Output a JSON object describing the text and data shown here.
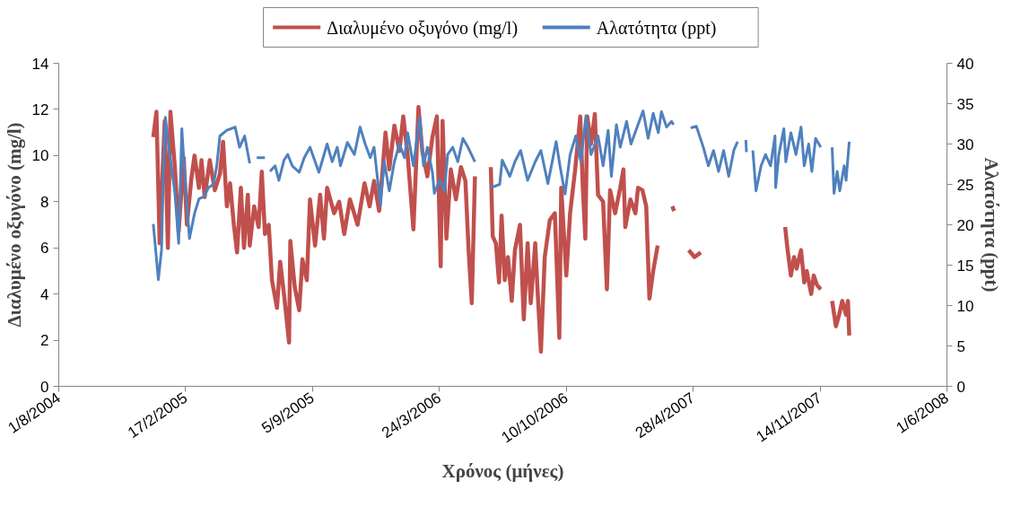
{
  "chart_data": {
    "type": "line",
    "xlabel": "Χρόνος (μήνες)",
    "ylabel": "Διαλυμένο οξυγόνο (mg/l)",
    "y2label": "Αλατότητα (ppt)",
    "xlim": [
      "2004-08-01",
      "2008-06-01"
    ],
    "xticks": [
      {
        "value": "2004-08-01",
        "label": "1/8/2004"
      },
      {
        "value": "2005-02-17",
        "label": "17/2/2005"
      },
      {
        "value": "2005-09-05",
        "label": "5/9/2005"
      },
      {
        "value": "2006-03-24",
        "label": "24/3/2006"
      },
      {
        "value": "2006-10-10",
        "label": "10/10/2006"
      },
      {
        "value": "2007-04-28",
        "label": "28/4/2007"
      },
      {
        "value": "2007-11-14",
        "label": "14/11/2007"
      },
      {
        "value": "2008-06-01",
        "label": "1/6/2008"
      }
    ],
    "ylim": [
      0,
      14
    ],
    "yticks": [
      0,
      2,
      4,
      6,
      8,
      10,
      12,
      14
    ],
    "y2lim": [
      0,
      40
    ],
    "y2ticks": [
      0,
      5,
      10,
      15,
      20,
      25,
      30,
      35,
      40
    ],
    "grid": false,
    "legend": "top",
    "marker": "none",
    "line_style": "solid",
    "series": [
      {
        "name": "Διαλυμένο οξυγόνο (mg/l)",
        "color": "#c0504d",
        "axis": "y",
        "x": [
          "2004-12-28",
          "2005-01-02",
          "2005-01-07",
          "2005-01-15",
          "2005-01-20",
          "2005-01-24",
          "2005-01-31",
          "2005-02-06",
          "2005-02-14",
          "2005-02-19",
          "2005-02-26",
          "2005-03-03",
          "2005-03-10",
          "2005-03-14",
          "2005-03-19",
          "2005-03-27",
          "2005-04-04",
          "2005-04-12",
          "2005-04-17",
          "2005-04-23",
          "2005-04-28",
          "2005-05-04",
          "2005-05-09",
          "2005-05-15",
          "2005-05-20",
          "2005-05-26",
          "2005-05-29",
          "2005-06-05",
          "2005-06-12",
          "2005-06-17",
          "2005-06-22",
          "2005-06-28",
          "2005-07-03",
          "2005-07-11",
          "2005-07-16",
          "2005-07-22",
          "2005-07-30",
          "2005-08-01",
          "2005-08-08",
          "2005-08-15",
          "2005-08-20",
          "2005-08-27",
          "2005-09-01",
          "2005-09-09",
          "2005-09-17",
          "2005-09-23",
          "2005-09-28",
          "2005-10-09",
          "2005-10-17",
          "2005-10-25",
          "2005-11-03",
          "2005-11-15",
          "2005-11-26",
          "2005-12-04",
          "2005-12-11",
          "2005-12-19",
          "2005-12-24",
          "2005-12-29",
          "2006-01-04",
          "2006-01-12",
          "2006-01-20",
          "2006-01-26",
          "2006-02-02",
          "2006-02-11",
          "2006-02-19",
          "2006-02-25",
          "2006-03-05",
          "2006-03-13",
          "2006-03-20",
          "2006-03-26",
          "2006-03-29",
          "2006-04-04",
          "2006-04-11",
          "2006-04-19",
          "2006-04-27",
          "2006-05-04",
          "2006-05-09",
          "2006-05-14",
          "2006-05-19",
          "2006-06-01",
          "2006-06-13",
          "2006-06-16",
          "2006-06-21",
          "2006-06-26",
          "2006-06-30",
          "2006-07-05",
          "2006-07-10",
          "2006-07-16",
          "2006-07-21",
          "2006-07-29",
          "2006-08-04",
          "2006-08-10",
          "2006-08-15",
          "2006-08-22",
          "2006-08-26",
          "2006-08-31",
          "2006-09-06",
          "2006-09-14",
          "2006-09-22",
          "2006-09-29",
          "2006-10-02",
          "2006-10-10",
          "2006-10-16",
          "2006-10-24",
          "2006-11-01",
          "2006-11-05",
          "2006-11-09",
          "2006-11-12",
          "2006-11-18",
          "2006-11-24",
          "2006-11-29",
          "2006-12-07",
          "2006-12-13",
          "2006-12-18",
          "2006-12-26",
          "2007-01-03",
          "2007-01-08",
          "2007-01-11",
          "2007-01-19",
          "2007-01-27",
          "2007-01-31",
          "2007-02-07",
          "2007-02-13",
          "2007-02-18",
          "2007-02-24",
          "2007-03-03",
          "2007-03-15",
          "2007-03-26",
          "2007-03-29",
          "2007-04-10",
          "2007-04-21",
          "2007-04-30",
          "2007-05-10",
          "2007-07-01",
          "2007-09-20",
          "2007-09-23",
          "2007-09-29",
          "2007-10-04",
          "2007-10-08",
          "2007-10-15",
          "2007-10-20",
          "2007-10-24",
          "2007-10-31",
          "2007-11-04",
          "2007-11-09",
          "2007-11-15",
          "2007-11-25",
          "2007-12-03",
          "2007-12-09",
          "2007-12-14",
          "2007-12-19",
          "2007-12-25",
          "2007-12-28",
          "2007-12-30"
        ],
        "values": [
          10.8,
          11.9,
          6.2,
          11.5,
          6.0,
          11.9,
          9.5,
          6.7,
          9.9,
          7.0,
          9.0,
          10.0,
          8.6,
          9.8,
          8.2,
          9.8,
          8.5,
          9.2,
          10.6,
          7.8,
          8.8,
          7.0,
          5.8,
          8.6,
          6.0,
          8.3,
          6.1,
          7.8,
          6.9,
          9.3,
          6.6,
          7.0,
          4.6,
          3.4,
          5.4,
          4.0,
          1.9,
          6.3,
          4.3,
          3.3,
          5.5,
          4.6,
          8.1,
          6.1,
          8.3,
          6.4,
          8.6,
          7.5,
          8.0,
          6.6,
          8.1,
          7.0,
          8.8,
          7.8,
          8.9,
          7.6,
          9.2,
          11.0,
          9.4,
          11.3,
          10.2,
          11.7,
          10.0,
          6.8,
          12.1,
          10.2,
          9.1,
          10.8,
          11.7,
          5.2,
          11.5,
          6.4,
          9.4,
          8.1,
          9.5,
          8.9,
          5.9,
          3.6,
          9.1,
          null,
          9.5,
          6.5,
          6.2,
          4.5,
          7.4,
          4.6,
          5.6,
          3.7,
          5.9,
          7.0,
          2.9,
          6.2,
          3.6,
          6.2,
          4.0,
          1.5,
          5.6,
          7.2,
          7.5,
          2.1,
          8.6,
          4.8,
          7.5,
          9.4,
          11.7,
          8.6,
          6.4,
          11.7,
          10.5,
          11.8,
          8.3,
          8.0,
          4.2,
          8.5,
          7.5,
          8.6,
          9.4,
          6.9,
          8.1,
          7.5,
          8.6,
          8.5,
          7.8,
          3.8,
          5.0,
          6.1,
          null,
          7.8,
          7.6,
          null,
          5.9,
          5.6,
          5.8,
          null,
          6.9,
          6.1,
          4.8,
          5.6,
          5.1,
          5.9,
          4.5,
          5.0,
          4.0,
          4.8,
          4.4,
          4.2,
          null,
          3.7,
          2.6,
          3.1,
          3.7,
          3.1,
          3.7,
          2.2
        ]
      },
      {
        "name": "Αλατότητα (ppt)",
        "color": "#4f81bd",
        "axis": "y2",
        "x": [
          "2004-12-28",
          "2005-01-05",
          "2005-01-10",
          "2005-01-13",
          "2005-01-16",
          "2005-01-23",
          "2005-01-31",
          "2005-02-06",
          "2005-02-11",
          "2005-02-15",
          "2005-02-23",
          "2005-03-03",
          "2005-03-10",
          "2005-03-18",
          "2005-03-25",
          "2005-04-02",
          "2005-04-07",
          "2005-04-12",
          "2005-04-23",
          "2005-05-06",
          "2005-05-13",
          "2005-05-21",
          "2005-05-29",
          "2005-06-03",
          "2005-06-09",
          "2005-06-22",
          "2005-06-26",
          "2005-06-30",
          "2005-07-08",
          "2005-07-14",
          "2005-07-22",
          "2005-07-28",
          "2005-08-04",
          "2005-08-15",
          "2005-08-23",
          "2005-09-01",
          "2005-09-15",
          "2005-09-28",
          "2005-10-06",
          "2005-10-14",
          "2005-10-19",
          "2005-10-30",
          "2005-11-10",
          "2005-11-19",
          "2005-11-27",
          "2005-12-05",
          "2005-12-11",
          "2005-12-16",
          "2005-12-21",
          "2005-12-27",
          "2006-01-04",
          "2006-01-12",
          "2006-01-20",
          "2006-01-28",
          "2006-02-02",
          "2006-02-11",
          "2006-02-21",
          "2006-02-27",
          "2006-03-05",
          "2006-03-13",
          "2006-03-16",
          "2006-03-24",
          "2006-04-01",
          "2006-04-06",
          "2006-04-14",
          "2006-04-22",
          "2006-04-30",
          "2006-05-08",
          "2006-05-19",
          "2006-06-01",
          "2006-06-13",
          "2006-06-27",
          "2006-07-01",
          "2006-07-10",
          "2006-07-13",
          "2006-07-21",
          "2006-07-30",
          "2006-08-10",
          "2006-08-22",
          "2006-08-31",
          "2006-09-11",
          "2006-09-24",
          "2006-09-30",
          "2006-10-08",
          "2006-10-16",
          "2006-10-25",
          "2006-11-02",
          "2006-11-10",
          "2006-11-18",
          "2006-11-29",
          "2006-12-07",
          "2006-12-15",
          "2006-12-20",
          "2006-12-28",
          "2007-01-03",
          "2007-01-13",
          "2007-01-20",
          "2007-01-31",
          "2007-02-08",
          "2007-02-16",
          "2007-02-24",
          "2007-03-04",
          "2007-03-09",
          "2007-03-17",
          "2007-03-25",
          "2007-03-28",
          "2007-04-10",
          "2007-04-24",
          "2007-05-03",
          "2007-05-14",
          "2007-05-22",
          "2007-05-30",
          "2007-06-07",
          "2007-06-15",
          "2007-06-23",
          "2007-07-01",
          "2007-07-07",
          "2007-07-14",
          "2007-07-20",
          "2007-07-21",
          "2007-07-26",
          "2007-07-31",
          "2007-08-05",
          "2007-08-13",
          "2007-08-20",
          "2007-08-28",
          "2007-09-04",
          "2007-09-05",
          "2007-09-10",
          "2007-09-18",
          "2007-09-21",
          "2007-09-29",
          "2007-10-07",
          "2007-10-15",
          "2007-10-20",
          "2007-10-27",
          "2007-11-01",
          "2007-11-07",
          "2007-11-15",
          "2007-11-25",
          "2007-12-03",
          "2007-12-06",
          "2007-12-11",
          "2007-12-15",
          "2007-12-22",
          "2007-12-25",
          "2007-12-30"
        ],
        "values": [
          20.1,
          13.2,
          16.9,
          26.9,
          33.3,
          28.7,
          24.0,
          17.7,
          31.9,
          26.9,
          18.3,
          21.4,
          23.2,
          23.5,
          24.6,
          25.0,
          27.3,
          31.0,
          31.7,
          32.1,
          29.6,
          31.0,
          27.6,
          null,
          28.3,
          28.3,
          null,
          26.6,
          27.3,
          25.5,
          28.0,
          28.7,
          27.3,
          26.5,
          28.3,
          29.6,
          26.5,
          30.0,
          27.8,
          29.6,
          27.3,
          30.2,
          28.7,
          32.1,
          30.0,
          28.3,
          29.6,
          26.0,
          22.4,
          27.8,
          24.2,
          27.8,
          30.0,
          28.3,
          31.4,
          27.3,
          33.3,
          27.3,
          29.6,
          26.5,
          23.9,
          25.5,
          24.2,
          28.7,
          29.6,
          27.8,
          30.7,
          29.6,
          27.8,
          null,
          24.6,
          25.0,
          28.0,
          26.5,
          26.0,
          27.8,
          29.2,
          25.5,
          27.8,
          29.2,
          25.1,
          30.3,
          27.3,
          23.8,
          28.7,
          31.0,
          27.8,
          33.5,
          28.7,
          31.0,
          27.3,
          31.7,
          26.0,
          32.4,
          29.6,
          32.8,
          30.0,
          32.4,
          34.1,
          30.7,
          33.8,
          31.4,
          34.0,
          32.1,
          32.8,
          32.4,
          null,
          32.0,
          32.2,
          29.6,
          27.3,
          29.2,
          26.6,
          29.2,
          26.0,
          29.2,
          30.3,
          null,
          30.5,
          29.0,
          null,
          29.2,
          24.2,
          27.3,
          28.7,
          27.3,
          31.0,
          24.6,
          28.7,
          31.9,
          27.8,
          31.4,
          28.7,
          32.1,
          27.3,
          30.0,
          26.6,
          30.7,
          29.6,
          null,
          29.6,
          23.9,
          26.6,
          24.2,
          27.3,
          25.5,
          30.3
        ]
      }
    ]
  }
}
